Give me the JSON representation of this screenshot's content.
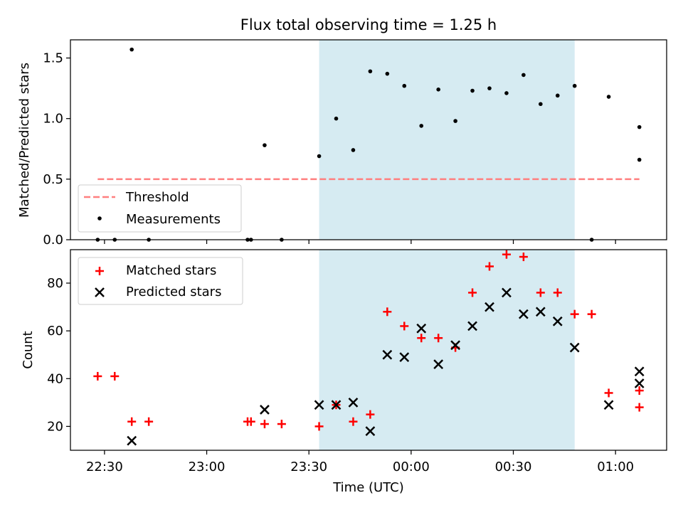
{
  "chart_data": [
    {
      "type": "scatter",
      "title": "Flux total observing time = 1.25 h",
      "xlabel": "",
      "ylabel": "Matched/Predicted stars",
      "ylim": [
        0.0,
        1.65
      ],
      "yticks": [
        "0.0",
        "0.5",
        "1.0",
        "1.5"
      ],
      "xlim_minutes_from_2230": [
        -10,
        165
      ],
      "shaded_span_minutes_from_2230": [
        63,
        138
      ],
      "shade_color": "#add8e6",
      "threshold": {
        "name": "Threshold",
        "value": 0.5,
        "x_start_min": -2,
        "x_end_min": 157,
        "color": "#ff7f7f"
      },
      "legend_placement": "lower-left",
      "series": [
        {
          "name": "Measurements",
          "color": "#000000",
          "points": [
            [
              -2,
              0.0
            ],
            [
              3,
              0.0
            ],
            [
              8,
              1.57
            ],
            [
              13,
              0.0
            ],
            [
              42,
              0.0
            ],
            [
              43,
              0.0
            ],
            [
              47,
              0.78
            ],
            [
              52,
              0.0
            ],
            [
              63,
              0.69
            ],
            [
              68,
              1.0
            ],
            [
              73,
              0.74
            ],
            [
              78,
              1.39
            ],
            [
              83,
              1.37
            ],
            [
              88,
              1.27
            ],
            [
              93,
              0.94
            ],
            [
              98,
              1.24
            ],
            [
              103,
              0.98
            ],
            [
              108,
              1.23
            ],
            [
              113,
              1.25
            ],
            [
              118,
              1.21
            ],
            [
              123,
              1.36
            ],
            [
              128,
              1.12
            ],
            [
              133,
              1.19
            ],
            [
              138,
              1.27
            ],
            [
              143,
              0.0
            ],
            [
              148,
              1.18
            ],
            [
              157,
              0.66
            ],
            [
              157,
              0.93
            ]
          ]
        }
      ]
    },
    {
      "type": "scatter",
      "title": "",
      "xlabel": "Time (UTC)",
      "ylabel": "Count",
      "ylim": [
        10,
        94
      ],
      "yticks": [
        "20",
        "40",
        "60",
        "80"
      ],
      "xticks": [
        "22:30",
        "23:00",
        "23:30",
        "00:00",
        "00:30",
        "01:00"
      ],
      "xtick_minutes_from_2230": [
        0,
        30,
        60,
        90,
        120,
        150
      ],
      "legend_placement": "upper-left",
      "series": [
        {
          "name": "Matched stars",
          "marker": "plus",
          "color": "#ff0000",
          "points": [
            [
              -2,
              41
            ],
            [
              3,
              41
            ],
            [
              8,
              22
            ],
            [
              13,
              22
            ],
            [
              42,
              22
            ],
            [
              43,
              22
            ],
            [
              47,
              21
            ],
            [
              52,
              21
            ],
            [
              63,
              20
            ],
            [
              68,
              29
            ],
            [
              73,
              22
            ],
            [
              78,
              25
            ],
            [
              83,
              68
            ],
            [
              88,
              62
            ],
            [
              93,
              57
            ],
            [
              98,
              57
            ],
            [
              103,
              53
            ],
            [
              108,
              76
            ],
            [
              113,
              87
            ],
            [
              118,
              92
            ],
            [
              123,
              91
            ],
            [
              128,
              76
            ],
            [
              133,
              76
            ],
            [
              138,
              67
            ],
            [
              143,
              67
            ],
            [
              148,
              34
            ],
            [
              157,
              28
            ],
            [
              157,
              35
            ]
          ]
        },
        {
          "name": "Predicted stars",
          "marker": "x",
          "color": "#000000",
          "points": [
            [
              8,
              14
            ],
            [
              47,
              27
            ],
            [
              63,
              29
            ],
            [
              68,
              29
            ],
            [
              73,
              30
            ],
            [
              78,
              18
            ],
            [
              83,
              50
            ],
            [
              88,
              49
            ],
            [
              93,
              61
            ],
            [
              98,
              46
            ],
            [
              103,
              54
            ],
            [
              108,
              62
            ],
            [
              113,
              70
            ],
            [
              118,
              76
            ],
            [
              123,
              67
            ],
            [
              128,
              68
            ],
            [
              133,
              64
            ],
            [
              138,
              53
            ],
            [
              148,
              29
            ],
            [
              157,
              43
            ],
            [
              157,
              38
            ]
          ]
        }
      ]
    }
  ]
}
